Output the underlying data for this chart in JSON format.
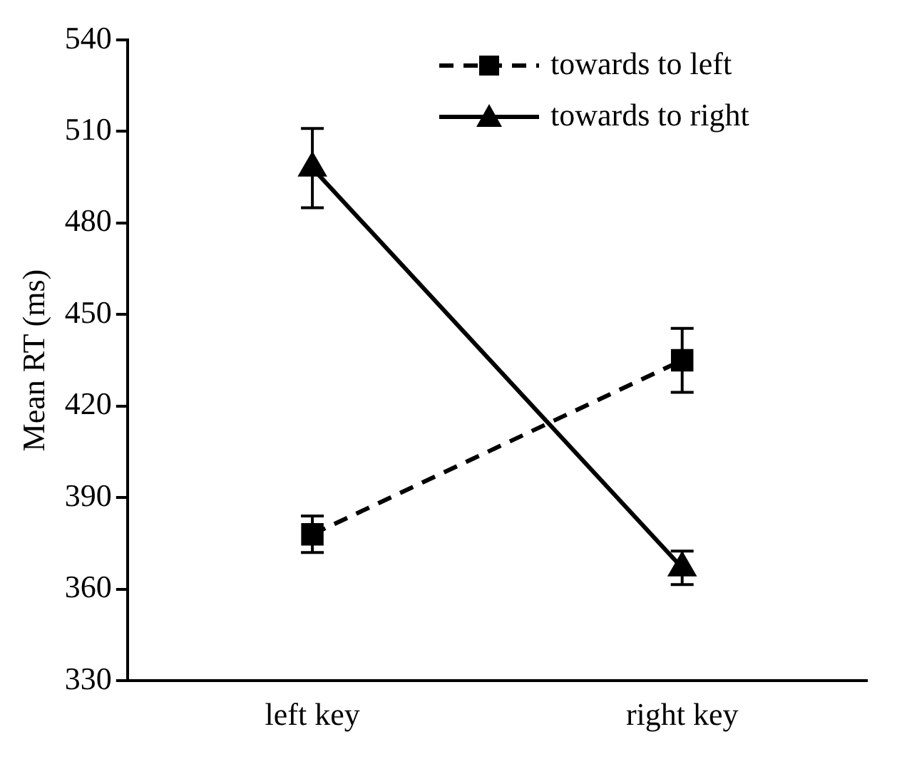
{
  "chart_data": {
    "type": "line",
    "ylabel": "Mean RT (ms)",
    "categories": [
      "left key",
      "right key"
    ],
    "series": [
      {
        "name": "towards to left",
        "color": "#000000",
        "marker": "square",
        "line_style": "dashed",
        "values": [
          378,
          435
        ],
        "errors": [
          6,
          10.5
        ]
      },
      {
        "name": "towards to right",
        "color": "#000000",
        "marker": "triangle",
        "line_style": "solid",
        "values": [
          498,
          367
        ],
        "errors": [
          13,
          5.5
        ]
      }
    ],
    "ylim": [
      330,
      540
    ],
    "yticks": [
      330,
      360,
      390,
      420,
      450,
      480,
      510,
      540
    ],
    "grid": false,
    "legend": "top right"
  }
}
